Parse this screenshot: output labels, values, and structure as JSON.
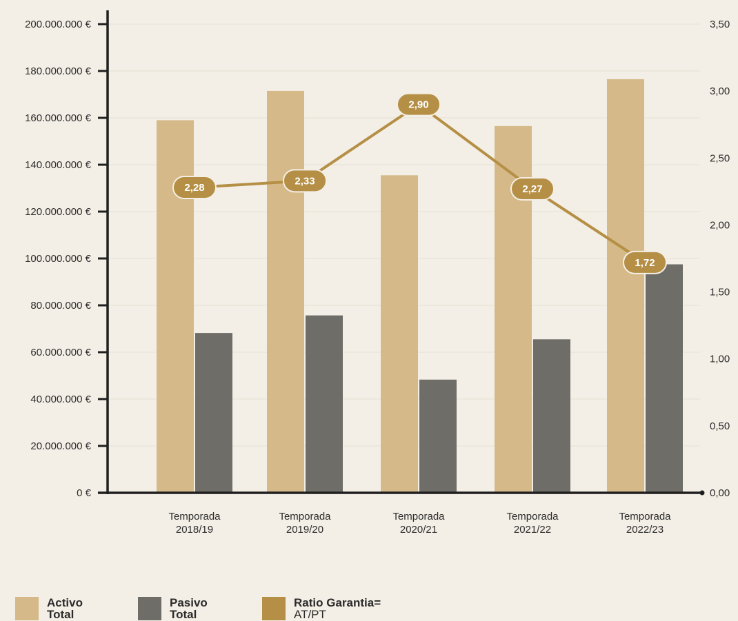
{
  "chart_data": {
    "type": "bar+line",
    "categories": [
      [
        "Temporada",
        "2018/19"
      ],
      [
        "Temporada",
        "2019/20"
      ],
      [
        "Temporada",
        "2020/21"
      ],
      [
        "Temporada",
        "2021/22"
      ],
      [
        "Temporada",
        "2022/23"
      ]
    ],
    "series": [
      {
        "name": "Activo Total",
        "type": "bar",
        "axis": "left",
        "color": "#d6b988",
        "values": [
          159000000,
          171500000,
          135500000,
          156500000,
          176500000
        ]
      },
      {
        "name": "Pasivo Total",
        "type": "bar",
        "axis": "left",
        "color": "#6f6d68",
        "values": [
          68200000,
          75700000,
          48300000,
          65500000,
          97500000
        ]
      },
      {
        "name": "Ratio Garantia= AT/PT",
        "type": "line",
        "axis": "right",
        "color": "#b58f45",
        "values": [
          2.28,
          2.33,
          2.9,
          2.27,
          1.72
        ],
        "labels": [
          "2,28",
          "2,33",
          "2,90",
          "2,27",
          "1,72"
        ]
      }
    ],
    "left_axis": {
      "ylim": [
        0,
        200000000
      ],
      "ticks": [
        0,
        20000000,
        40000000,
        60000000,
        80000000,
        100000000,
        120000000,
        140000000,
        160000000,
        180000000,
        200000000
      ],
      "tick_labels": [
        "0 €",
        "20.000.000 €",
        "40.000.000 €",
        "60.000.000 €",
        "80.000.000 €",
        "100.000.000 €",
        "120.000.000 €",
        "140.000.000 €",
        "160.000.000 €",
        "180.000.000 €",
        "200.000.000 €"
      ]
    },
    "right_axis": {
      "ylim": [
        0,
        3.5
      ],
      "ticks": [
        0,
        0.5,
        1.0,
        1.5,
        2.0,
        2.5,
        3.0,
        3.5
      ],
      "tick_labels": [
        "0,00",
        "0,50",
        "1,00",
        "1,50",
        "2,00",
        "2,50",
        "3,00",
        "3,50"
      ]
    },
    "grid": true
  },
  "legend": [
    {
      "line1": "Activo",
      "line2": "Total",
      "color": "#d6b988"
    },
    {
      "line1": "Pasivo",
      "line2": "Total",
      "color": "#6f6d68"
    },
    {
      "line1": "Ratio Garantia=",
      "line2": "AT/PT",
      "color": "#b58f45"
    }
  ]
}
